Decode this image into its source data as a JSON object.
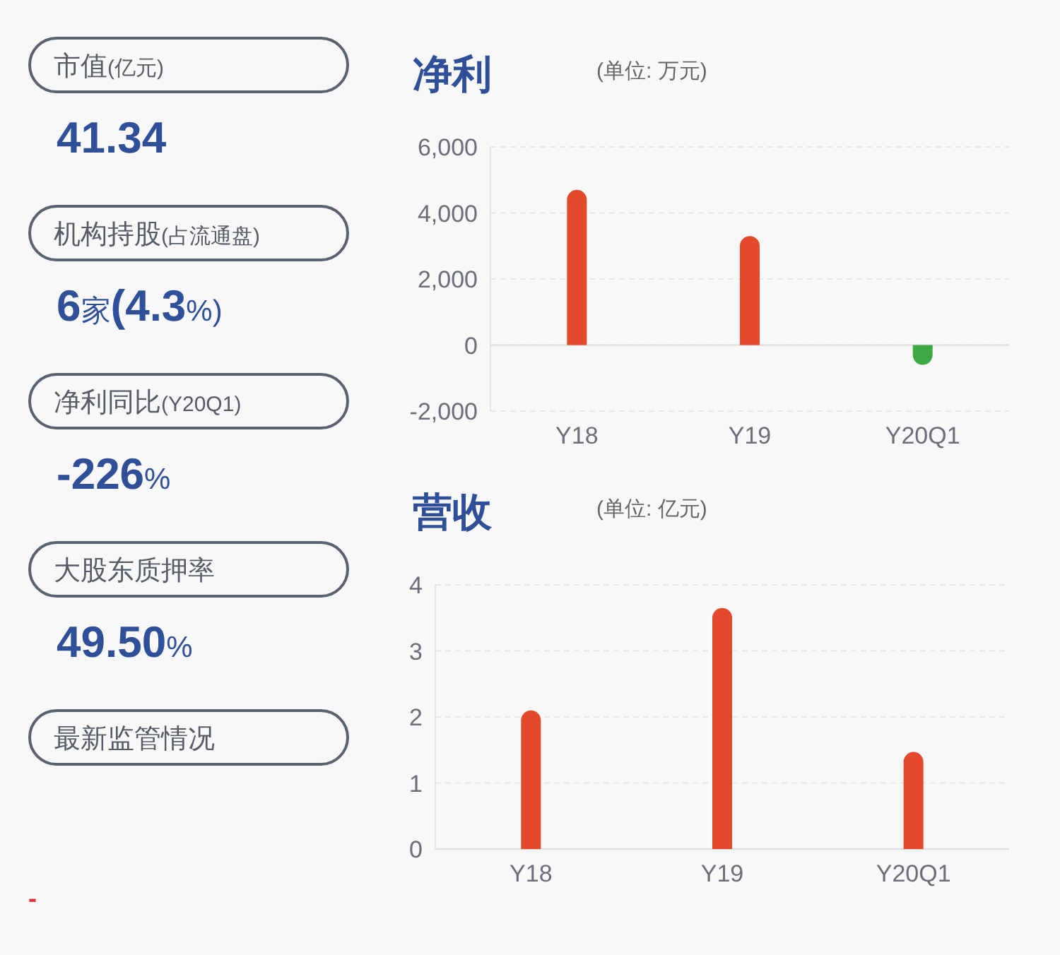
{
  "chart_data": [
    {
      "type": "other",
      "annotations": [
        "市值(亿元)",
        "41.34",
        "机构持股(占流通盘)",
        "6家(4.3%)",
        "净利同比(Y20Q1)",
        "-226%",
        "大股东质押率",
        "49.50%",
        "最新监管情况",
        "-"
      ]
    },
    {
      "type": "bar",
      "title": "净利",
      "subtitle": "(单位: 万元)",
      "categories": [
        "Y18",
        "Y19",
        "Y20Q1"
      ],
      "values": [
        4700,
        3300,
        -600
      ],
      "colors": [
        "#e24a2b",
        "#e24a2b",
        "#3ea843"
      ],
      "ylim": [
        -2000,
        6000
      ],
      "yticks": [
        {
          "value": -2000,
          "label": "-2,000"
        },
        0,
        {
          "value": 2000,
          "label": "2,000"
        },
        {
          "value": 4000,
          "label": "4,000"
        },
        {
          "value": 6000,
          "label": "6,000"
        }
      ],
      "grid": "y"
    },
    {
      "type": "bar",
      "title": "营收",
      "subtitle": "(单位: 亿元)",
      "categories": [
        "Y18",
        "Y19",
        "Y20Q1"
      ],
      "values": [
        2.1,
        3.65,
        1.47
      ],
      "colors": [
        "#e24a2b",
        "#e24a2b",
        "#e24a2b"
      ],
      "ylim": [
        0,
        4
      ],
      "yticks": [
        0,
        1,
        2,
        3,
        4
      ],
      "grid": "y"
    }
  ]
}
